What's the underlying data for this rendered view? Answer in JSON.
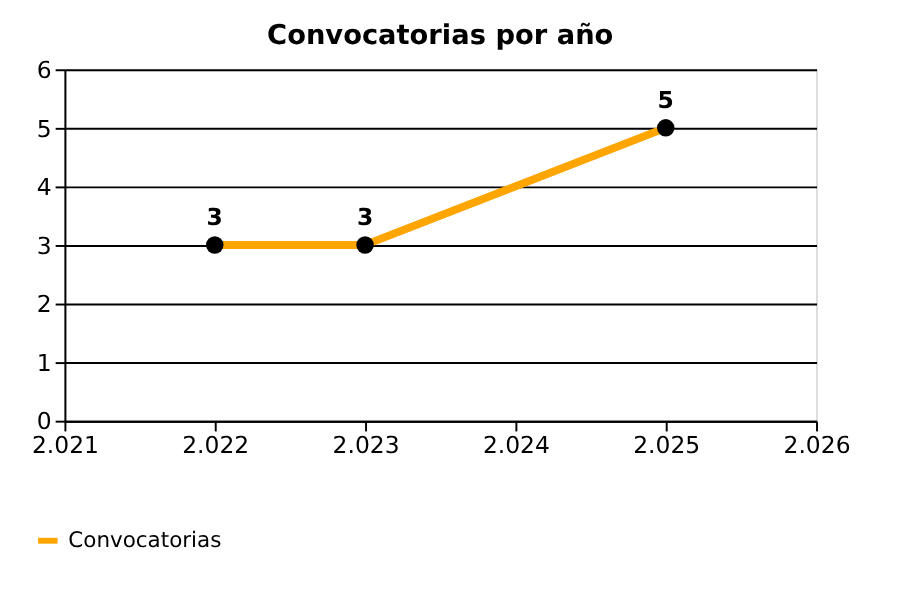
{
  "chart_data": {
    "type": "line",
    "title": "Convocatorias por año",
    "x": [
      2022,
      2023,
      2025
    ],
    "series": [
      {
        "name": "Convocatorias",
        "color": "#ffa500",
        "values": [
          3,
          3,
          5
        ]
      }
    ],
    "xlim": [
      2021,
      2026
    ],
    "xticks": [
      {
        "value": 2021,
        "label": "2.021"
      },
      {
        "value": 2022,
        "label": "2.022"
      },
      {
        "value": 2023,
        "label": "2.023"
      },
      {
        "value": 2024,
        "label": "2.024"
      },
      {
        "value": 2025,
        "label": "2.025"
      },
      {
        "value": 2026,
        "label": "2.026"
      }
    ],
    "ylim": [
      0,
      6
    ],
    "yticks": [
      0,
      1,
      2,
      3,
      4,
      5,
      6
    ],
    "grid": "y",
    "legend": "bottom left",
    "marker": "circle",
    "line_style": "solid",
    "data_labels": true
  }
}
